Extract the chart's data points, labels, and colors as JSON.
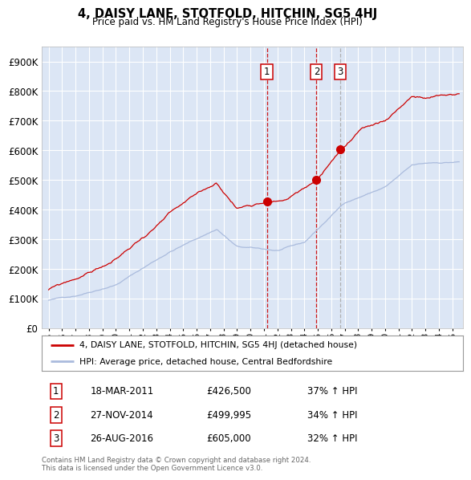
{
  "title": "4, DAISY LANE, STOTFOLD, HITCHIN, SG5 4HJ",
  "subtitle": "Price paid vs. HM Land Registry's House Price Index (HPI)",
  "red_label": "4, DAISY LANE, STOTFOLD, HITCHIN, SG5 4HJ (detached house)",
  "blue_label": "HPI: Average price, detached house, Central Bedfordshire",
  "footer1": "Contains HM Land Registry data © Crown copyright and database right 2024.",
  "footer2": "This data is licensed under the Open Government Licence v3.0.",
  "transactions": [
    {
      "num": 1,
      "date": "18-MAR-2011",
      "price": "£426,500",
      "hpi": "37% ↑ HPI",
      "year": 2011.21,
      "color": "#cc0000"
    },
    {
      "num": 2,
      "date": "27-NOV-2014",
      "price": "£499,995",
      "hpi": "34% ↑ HPI",
      "year": 2014.9,
      "color": "#cc0000"
    },
    {
      "num": 3,
      "date": "26-AUG-2016",
      "price": "£605,000",
      "hpi": "32% ↑ HPI",
      "year": 2016.65,
      "color": "#aaaaaa"
    }
  ],
  "transaction_values": [
    426500,
    499995,
    605000
  ],
  "ylim": [
    0,
    950000
  ],
  "yticks": [
    0,
    100000,
    200000,
    300000,
    400000,
    500000,
    600000,
    700000,
    800000,
    900000
  ],
  "xlim_left": 1994.5,
  "xlim_right": 2025.8,
  "background_color": "#ffffff",
  "plot_bg_color": "#dce6f5",
  "grid_color": "#ffffff",
  "red_color": "#cc0000",
  "blue_color": "#aabbdd"
}
